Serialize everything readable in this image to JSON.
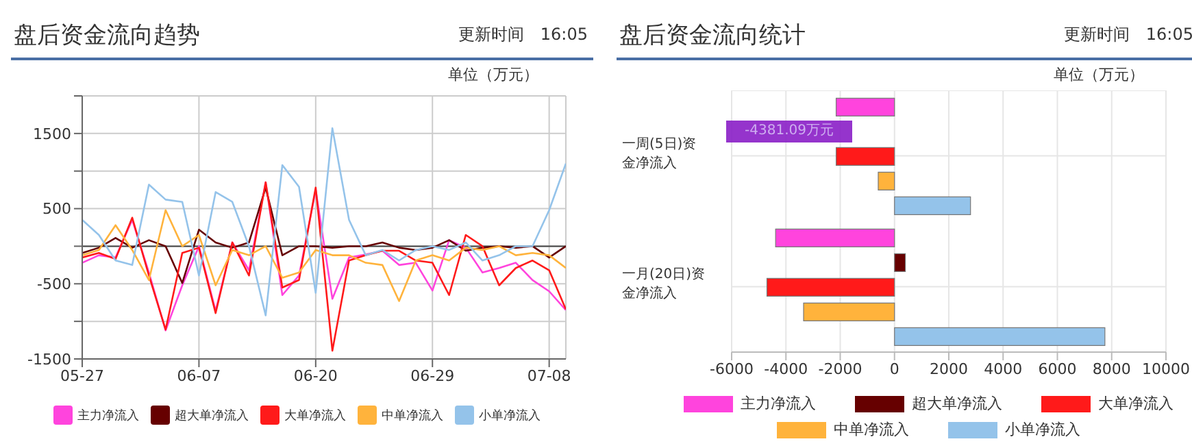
{
  "chart_data": [
    {
      "type": "line",
      "title": "盘后资金流向趋势",
      "subtitle": "更新时间　16:05",
      "annotations": [
        "单位（万元）"
      ],
      "categories": [
        "05-27",
        null,
        null,
        null,
        null,
        null,
        null,
        "06-07",
        null,
        null,
        null,
        null,
        null,
        null,
        "06-20",
        null,
        null,
        null,
        null,
        null,
        null,
        "06-29",
        null,
        null,
        null,
        null,
        null,
        null,
        "07-08",
        null
      ],
      "series": [
        {
          "name": "主力净流入",
          "color": "#ff44dd",
          "values": [
            -220,
            -120,
            -150,
            350,
            -350,
            -1120,
            -520,
            0,
            -860,
            50,
            -320,
            850,
            -650,
            -390,
            750,
            -700,
            -150,
            -110,
            -60,
            -250,
            -220,
            -590,
            80,
            -20,
            -350,
            -290,
            -220,
            -450,
            -600,
            -850
          ]
        },
        {
          "name": "超大单净流入",
          "color": "#660000",
          "values": [
            -90,
            -20,
            110,
            -20,
            80,
            0,
            -490,
            220,
            50,
            -20,
            50,
            780,
            -120,
            0,
            0,
            -20,
            0,
            0,
            50,
            -20,
            -50,
            -20,
            80,
            -60,
            -20,
            0,
            -20,
            0,
            -150,
            0
          ]
        },
        {
          "name": "大单净流入",
          "color": "#ff1a1a",
          "values": [
            -150,
            -90,
            -170,
            380,
            -390,
            -1110,
            -90,
            -20,
            -890,
            50,
            -390,
            850,
            -550,
            -450,
            780,
            -1390,
            -190,
            -120,
            -60,
            -60,
            -190,
            -220,
            -650,
            150,
            0,
            -520,
            -290,
            -190,
            -320,
            -840
          ]
        },
        {
          "name": "中单净流入",
          "color": "#ffb33c",
          "values": [
            -120,
            -50,
            280,
            -50,
            -450,
            480,
            0,
            150,
            -520,
            -50,
            -120,
            0,
            -420,
            -350,
            -50,
            -120,
            -120,
            -220,
            -250,
            -730,
            -190,
            -120,
            -190,
            -20,
            -50,
            0,
            -120,
            -90,
            -120,
            -290
          ]
        },
        {
          "name": "小单净流入",
          "color": "#94c3ea",
          "values": [
            350,
            150,
            -190,
            -250,
            820,
            620,
            590,
            -390,
            720,
            590,
            0,
            -920,
            1080,
            790,
            -620,
            1570,
            350,
            -120,
            -50,
            -190,
            -50,
            0,
            -50,
            50,
            -190,
            -120,
            0,
            0,
            480,
            1100
          ]
        }
      ],
      "ylim": [
        -1500,
        2000
      ],
      "yticks": [
        -1500,
        {
          "value": -1000,
          "label": null
        },
        -500,
        {
          "value": 0,
          "label": null
        },
        500,
        {
          "value": 1000,
          "label": null
        },
        1500,
        {
          "value": 2000,
          "label": null
        }
      ],
      "grid": true,
      "legend": "bottom",
      "marker": "none",
      "line_style": "solid"
    },
    {
      "type": "bar",
      "orientation": "horizontal",
      "title": "盘后资金流向统计",
      "subtitle": "更新时间　16:05",
      "annotations": [
        "单位（万元）",
        "-4381.09万元"
      ],
      "categories": [
        "一周(5日)资金净流入",
        "一月(20日)资金净流入"
      ],
      "series": [
        {
          "name": "主力净流入",
          "color": "#ff44dd",
          "values": [
            -2150,
            -4381.09
          ]
        },
        {
          "name": "超大单净流入",
          "color": "#660000",
          "values": [
            0,
            400
          ]
        },
        {
          "name": "大单净流入",
          "color": "#ff1a1a",
          "values": [
            -2150,
            -4700
          ]
        },
        {
          "name": "中单净流入",
          "color": "#ffb33c",
          "values": [
            -600,
            -3350
          ]
        },
        {
          "name": "小单净流入",
          "color": "#94c3ea",
          "values": [
            2800,
            7750
          ]
        }
      ],
      "xlim": [
        -6000,
        10000
      ],
      "xticks": [
        -6000,
        -4000,
        -2000,
        0,
        2000,
        4000,
        6000,
        8000,
        10000
      ],
      "grid": true,
      "legend": "bottom"
    }
  ]
}
